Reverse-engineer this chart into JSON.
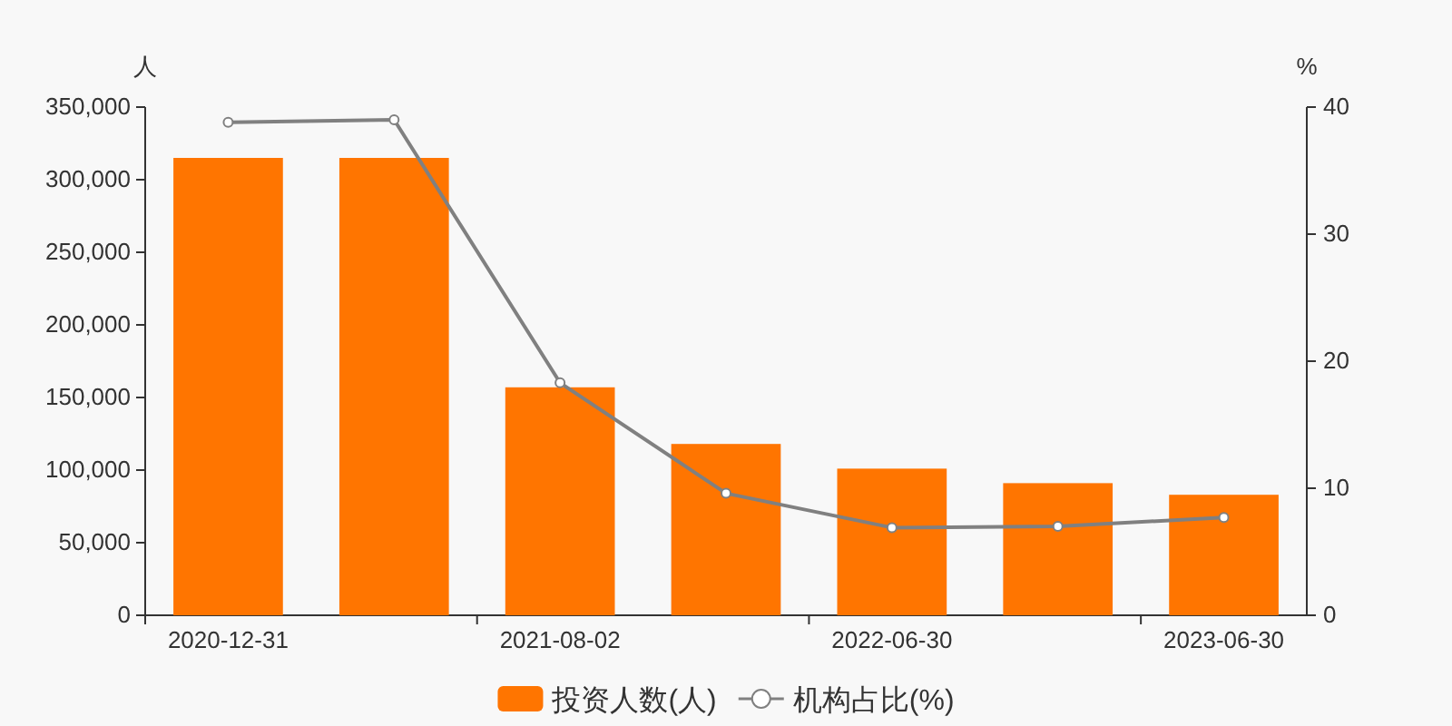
{
  "chart_data": {
    "type": "bar",
    "categories": [
      "2020-12-31",
      null,
      "2021-08-02",
      null,
      "2022-06-30",
      null,
      "2023-06-30"
    ],
    "series": [
      {
        "name": "投资人数(人)",
        "color": "#ff7500",
        "values": [
          315000,
          315000,
          157000,
          118000,
          101000,
          91000,
          83000
        ]
      },
      {
        "name": "机构占比(%)",
        "type": "line",
        "axis": "y2",
        "color": "#808080",
        "marker": "circle",
        "values": [
          38.8,
          39.0,
          18.3,
          9.6,
          6.9,
          7.0,
          7.7
        ]
      }
    ],
    "ylabel": "人",
    "y2label": "%",
    "ylim": [
      0,
      350000
    ],
    "yticks": [
      0,
      {
        "value": 50000,
        "label": "50,000"
      },
      {
        "value": 100000,
        "label": "100,000"
      },
      {
        "value": 150000,
        "label": "150,000"
      },
      {
        "value": 200000,
        "label": "200,000"
      },
      {
        "value": 250000,
        "label": "250,000"
      },
      {
        "value": 300000,
        "label": "300,000"
      },
      {
        "value": 350000,
        "label": "350,000"
      }
    ],
    "y2lim": [
      0,
      40
    ],
    "y2ticks": [
      0,
      10,
      20,
      30,
      40
    ],
    "legend": "bottom",
    "grid": false
  }
}
